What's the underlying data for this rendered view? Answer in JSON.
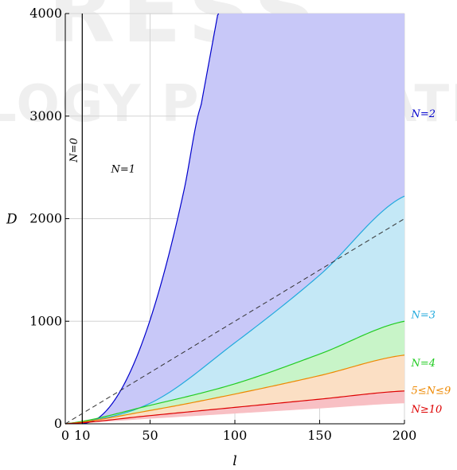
{
  "chart_data": {
    "type": "area",
    "xlabel": "l",
    "ylabel": "D",
    "xlim": [
      0,
      200
    ],
    "ylim": [
      0,
      4000
    ],
    "x_ticks": [
      0,
      10,
      50,
      100,
      150,
      200
    ],
    "y_ticks": [
      0,
      1000,
      2000,
      3000,
      4000
    ],
    "grid": true,
    "series": [
      {
        "name": "N=0",
        "kind": "vertical-line",
        "x": 10,
        "color": "#000000"
      },
      {
        "name": "N=2",
        "kind": "boundary-curve",
        "color": "#0000cc",
        "fill": "#c8c8f8",
        "x": [
          10,
          20,
          30,
          40,
          50,
          60,
          70,
          80
        ],
        "y": [
          0,
          63,
          253,
          569,
          1012,
          1581,
          2277,
          3100
        ]
      },
      {
        "name": "N=3",
        "kind": "boundary-curve",
        "color": "#22aadd",
        "fill": "#c4e8f6",
        "x": [
          0,
          50,
          100,
          150,
          200
        ],
        "y": [
          0,
          200,
          790,
          1450,
          2220
        ]
      },
      {
        "name": "N=4",
        "kind": "boundary-curve",
        "color": "#22cc22",
        "fill": "#c8f4c8",
        "x": [
          0,
          50,
          100,
          150,
          200
        ],
        "y": [
          0,
          180,
          390,
          680,
          1000
        ]
      },
      {
        "name": "5≤N≤9",
        "kind": "boundary-curve",
        "color": "#ee8800",
        "fill": "#fbdfc4",
        "x": [
          0,
          50,
          100,
          150,
          200
        ],
        "y": [
          0,
          130,
          290,
          470,
          670
        ]
      },
      {
        "name": "N≥10",
        "kind": "boundary-curve",
        "color": "#dd0000",
        "fill": "#f8c0c4",
        "x": [
          0,
          50,
          100,
          150,
          200
        ],
        "y": [
          0,
          80,
          160,
          240,
          320
        ]
      },
      {
        "name": "",
        "kind": "lower-boundary",
        "color": "#f8c0c4",
        "x": [
          0,
          50,
          100,
          150,
          200
        ],
        "y": [
          0,
          50,
          100,
          150,
          200
        ]
      },
      {
        "name": "",
        "kind": "dashed-line",
        "color": "#333333",
        "x": [
          0,
          200
        ],
        "y": [
          0,
          2000
        ]
      }
    ],
    "region_labels": [
      {
        "text": "N=0",
        "x": 7,
        "y": 2550,
        "color": "#000000",
        "rotate": true
      },
      {
        "text": "N=1",
        "x": 27,
        "y": 2450,
        "color": "#000000"
      },
      {
        "text": "N=2",
        "x": 204,
        "y": 2990,
        "color": "#0000cc"
      },
      {
        "text": "N=3",
        "x": 204,
        "y": 1030,
        "color": "#22aadd"
      },
      {
        "text": "N=4",
        "x": 204,
        "y": 560,
        "color": "#22cc22"
      },
      {
        "text": "5≤N≤9",
        "x": 204,
        "y": 290,
        "color": "#ee8800"
      },
      {
        "text": "N≥10",
        "x": 204,
        "y": 110,
        "color": "#dd0000"
      }
    ]
  },
  "watermark": {
    "lines": [
      "RESS",
      "LOGY PUBLICATIONS"
    ],
    "color": "#000000"
  }
}
